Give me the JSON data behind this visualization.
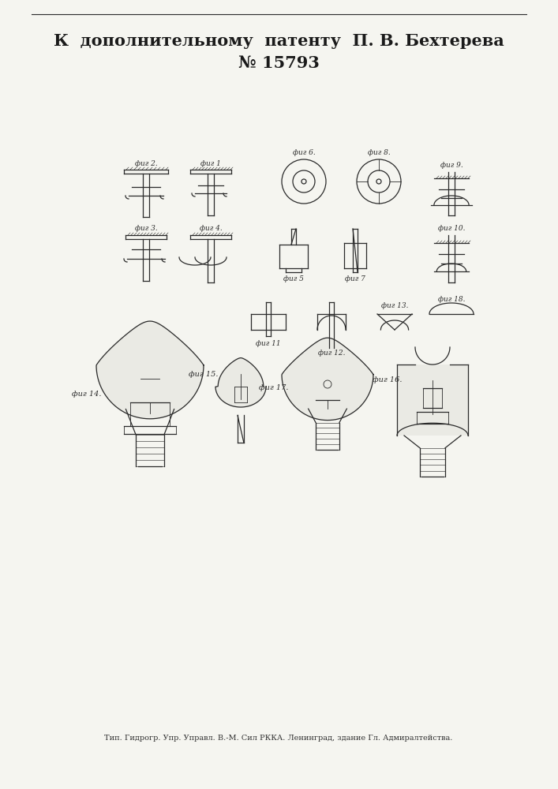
{
  "title_line1": "К  дополнительному  патенту  П. В. Бехтерева",
  "title_line2": "№ 15793",
  "footer": "Тип. Гидрогр. Упр. Управл. В.-М. Сил РККА. Ленинград, здание Гл. Адмиралтейства.",
  "bg_color": "#f5f5f0",
  "text_color": "#1a1a1a",
  "title_fontsize": 15,
  "footer_fontsize": 7,
  "fig_width": 7.07,
  "fig_height": 10.0
}
